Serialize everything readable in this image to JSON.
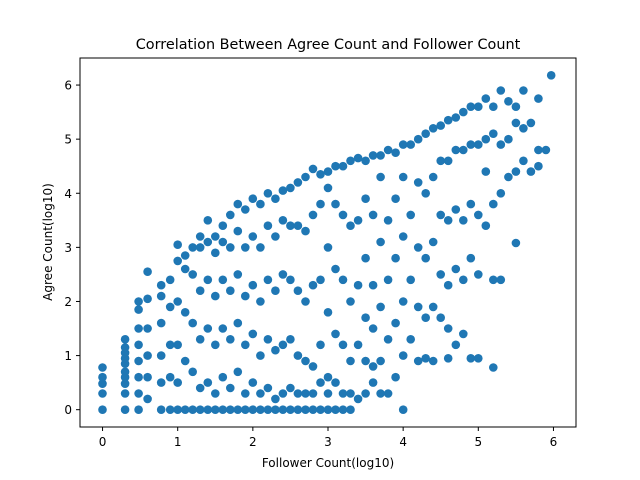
{
  "chart_data": {
    "type": "scatter",
    "title": "Correlation Between Agree Count and Follower Count",
    "xlabel": "Follower Count(log10)",
    "ylabel": "Agree Count(log10)",
    "xlim": [
      -0.3,
      6.3
    ],
    "ylim": [
      -0.32,
      6.5
    ],
    "xticks": [
      0,
      1,
      2,
      3,
      4,
      5,
      6
    ],
    "yticks": [
      0,
      1,
      2,
      3,
      4,
      5,
      6
    ],
    "grid": false,
    "legend": "none",
    "marker_color": "#1f77b4",
    "points": [
      [
        0,
        0
      ],
      [
        0,
        0.3
      ],
      [
        0,
        0.48
      ],
      [
        0,
        0.6
      ],
      [
        0,
        0.78
      ],
      [
        0.3,
        0
      ],
      [
        0.3,
        0.3
      ],
      [
        0.3,
        0.48
      ],
      [
        0.3,
        0.6
      ],
      [
        0.3,
        0.7
      ],
      [
        0.3,
        0.85
      ],
      [
        0.3,
        0.95
      ],
      [
        0.3,
        1.05
      ],
      [
        0.3,
        1.15
      ],
      [
        0.3,
        1.3
      ],
      [
        0.48,
        0
      ],
      [
        0.48,
        0.3
      ],
      [
        0.48,
        0.6
      ],
      [
        0.48,
        0.9
      ],
      [
        0.48,
        1.2
      ],
      [
        0.48,
        1.5
      ],
      [
        0.48,
        1.85
      ],
      [
        0.48,
        2.0
      ],
      [
        0.6,
        0.2
      ],
      [
        0.6,
        0.6
      ],
      [
        0.6,
        1.0
      ],
      [
        0.6,
        1.5
      ],
      [
        0.6,
        2.05
      ],
      [
        0.6,
        2.55
      ],
      [
        0.78,
        0
      ],
      [
        0.78,
        0.5
      ],
      [
        0.78,
        1.0
      ],
      [
        0.78,
        1.6
      ],
      [
        0.78,
        2.1
      ],
      [
        0.78,
        2.3
      ],
      [
        0.9,
        0
      ],
      [
        0.9,
        0.6
      ],
      [
        0.9,
        1.2
      ],
      [
        0.9,
        1.9
      ],
      [
        0.9,
        2.4
      ],
      [
        1.0,
        0
      ],
      [
        1.0,
        0.5
      ],
      [
        1.0,
        1.2
      ],
      [
        1.0,
        2.0
      ],
      [
        1.0,
        2.75
      ],
      [
        1.0,
        3.05
      ],
      [
        1.1,
        0
      ],
      [
        1.1,
        0.9
      ],
      [
        1.1,
        1.8
      ],
      [
        1.1,
        2.6
      ],
      [
        1.1,
        2.85
      ],
      [
        1.2,
        0
      ],
      [
        1.2,
        0.7
      ],
      [
        1.2,
        1.6
      ],
      [
        1.2,
        2.5
      ],
      [
        1.2,
        3.0
      ],
      [
        1.3,
        0
      ],
      [
        1.3,
        0.4
      ],
      [
        1.3,
        1.3
      ],
      [
        1.3,
        2.2
      ],
      [
        1.3,
        3.0
      ],
      [
        1.3,
        3.2
      ],
      [
        1.4,
        0
      ],
      [
        1.4,
        0.5
      ],
      [
        1.4,
        1.5
      ],
      [
        1.4,
        2.4
      ],
      [
        1.4,
        3.1
      ],
      [
        1.4,
        3.5
      ],
      [
        1.5,
        0
      ],
      [
        1.5,
        0.3
      ],
      [
        1.5,
        1.2
      ],
      [
        1.5,
        2.1
      ],
      [
        1.5,
        2.9
      ],
      [
        1.5,
        3.2
      ],
      [
        1.6,
        0
      ],
      [
        1.6,
        0.6
      ],
      [
        1.6,
        1.5
      ],
      [
        1.6,
        2.4
      ],
      [
        1.6,
        3.1
      ],
      [
        1.6,
        3.4
      ],
      [
        1.7,
        0
      ],
      [
        1.7,
        0.4
      ],
      [
        1.7,
        1.3
      ],
      [
        1.7,
        2.2
      ],
      [
        1.7,
        3.0
      ],
      [
        1.7,
        3.6
      ],
      [
        1.8,
        0
      ],
      [
        1.8,
        0.7
      ],
      [
        1.8,
        1.6
      ],
      [
        1.8,
        2.5
      ],
      [
        1.8,
        3.3
      ],
      [
        1.8,
        3.8
      ],
      [
        1.9,
        0
      ],
      [
        1.9,
        0.3
      ],
      [
        1.9,
        1.2
      ],
      [
        1.9,
        2.1
      ],
      [
        1.9,
        3.0
      ],
      [
        1.9,
        3.7
      ],
      [
        2.0,
        0
      ],
      [
        2.0,
        0.5
      ],
      [
        2.0,
        1.4
      ],
      [
        2.0,
        2.3
      ],
      [
        2.0,
        3.2
      ],
      [
        2.0,
        3.9
      ],
      [
        2.1,
        0
      ],
      [
        2.1,
        0.3
      ],
      [
        2.1,
        1.0
      ],
      [
        2.1,
        2.0
      ],
      [
        2.1,
        3.0
      ],
      [
        2.1,
        3.8
      ],
      [
        2.2,
        0
      ],
      [
        2.2,
        0.4
      ],
      [
        2.2,
        1.3
      ],
      [
        2.2,
        2.4
      ],
      [
        2.2,
        3.4
      ],
      [
        2.2,
        4.0
      ],
      [
        2.3,
        0
      ],
      [
        2.3,
        0.2
      ],
      [
        2.3,
        1.1
      ],
      [
        2.3,
        2.2
      ],
      [
        2.3,
        3.2
      ],
      [
        2.3,
        3.9
      ],
      [
        2.4,
        0
      ],
      [
        2.4,
        0.3
      ],
      [
        2.4,
        1.2
      ],
      [
        2.4,
        2.5
      ],
      [
        2.4,
        3.5
      ],
      [
        2.4,
        4.05
      ],
      [
        2.5,
        0
      ],
      [
        2.5,
        0.4
      ],
      [
        2.5,
        1.3
      ],
      [
        2.5,
        2.4
      ],
      [
        2.5,
        3.4
      ],
      [
        2.5,
        4.1
      ],
      [
        2.6,
        0
      ],
      [
        2.6,
        0.3
      ],
      [
        2.6,
        1.0
      ],
      [
        2.6,
        2.2
      ],
      [
        2.6,
        3.4
      ],
      [
        2.6,
        4.2
      ],
      [
        2.7,
        0
      ],
      [
        2.7,
        0.3
      ],
      [
        2.7,
        0.9
      ],
      [
        2.7,
        2.0
      ],
      [
        2.7,
        3.3
      ],
      [
        2.7,
        4.3
      ],
      [
        2.8,
        0
      ],
      [
        2.8,
        0.3
      ],
      [
        2.8,
        0.8
      ],
      [
        2.8,
        2.3
      ],
      [
        2.8,
        3.6
      ],
      [
        2.8,
        4.45
      ],
      [
        2.9,
        0
      ],
      [
        2.9,
        0.5
      ],
      [
        2.9,
        1.2
      ],
      [
        2.9,
        2.4
      ],
      [
        2.9,
        3.8
      ],
      [
        2.9,
        4.35
      ],
      [
        3.0,
        0
      ],
      [
        3.0,
        0.3
      ],
      [
        3.0,
        0.6
      ],
      [
        3.0,
        1.8
      ],
      [
        3.0,
        3.0
      ],
      [
        3.0,
        4.1
      ],
      [
        3.0,
        4.4
      ],
      [
        3.1,
        0
      ],
      [
        3.1,
        0.5
      ],
      [
        3.1,
        1.4
      ],
      [
        3.1,
        2.6
      ],
      [
        3.1,
        3.8
      ],
      [
        3.1,
        4.5
      ],
      [
        3.2,
        0
      ],
      [
        3.2,
        0.3
      ],
      [
        3.2,
        1.2
      ],
      [
        3.2,
        2.4
      ],
      [
        3.2,
        3.6
      ],
      [
        3.2,
        4.5
      ],
      [
        3.3,
        0
      ],
      [
        3.3,
        0.3
      ],
      [
        3.3,
        0.9
      ],
      [
        3.3,
        2.0
      ],
      [
        3.3,
        3.4
      ],
      [
        3.3,
        4.6
      ],
      [
        3.4,
        0.2
      ],
      [
        3.4,
        1.2
      ],
      [
        3.4,
        2.3
      ],
      [
        3.4,
        3.5
      ],
      [
        3.4,
        4.65
      ],
      [
        3.5,
        0.3
      ],
      [
        3.5,
        0.9
      ],
      [
        3.5,
        1.7
      ],
      [
        3.5,
        2.8
      ],
      [
        3.5,
        3.9
      ],
      [
        3.5,
        4.6
      ],
      [
        3.6,
        0.5
      ],
      [
        3.6,
        0.8
      ],
      [
        3.6,
        1.5
      ],
      [
        3.6,
        2.3
      ],
      [
        3.6,
        3.6
      ],
      [
        3.6,
        4.7
      ],
      [
        3.7,
        0.3
      ],
      [
        3.7,
        0.9
      ],
      [
        3.7,
        1.9
      ],
      [
        3.7,
        3.1
      ],
      [
        3.7,
        4.3
      ],
      [
        3.7,
        4.7
      ],
      [
        3.8,
        0.3
      ],
      [
        3.8,
        1.3
      ],
      [
        3.8,
        2.4
      ],
      [
        3.8,
        3.5
      ],
      [
        3.8,
        4.8
      ],
      [
        3.9,
        0.6
      ],
      [
        3.9,
        1.6
      ],
      [
        3.9,
        2.8
      ],
      [
        3.9,
        3.9
      ],
      [
        3.9,
        4.75
      ],
      [
        4.0,
        0
      ],
      [
        4.0,
        1.0
      ],
      [
        4.0,
        2.0
      ],
      [
        4.0,
        3.2
      ],
      [
        4.0,
        4.3
      ],
      [
        4.0,
        4.9
      ],
      [
        4.1,
        1.3
      ],
      [
        4.1,
        2.4
      ],
      [
        4.1,
        3.6
      ],
      [
        4.1,
        4.9
      ],
      [
        4.2,
        0.9
      ],
      [
        4.2,
        1.9
      ],
      [
        4.2,
        3.0
      ],
      [
        4.2,
        4.2
      ],
      [
        4.2,
        5.0
      ],
      [
        4.3,
        0.95
      ],
      [
        4.3,
        1.7
      ],
      [
        4.3,
        2.8
      ],
      [
        4.3,
        4.0
      ],
      [
        4.3,
        5.1
      ],
      [
        4.4,
        0.9
      ],
      [
        4.4,
        1.9
      ],
      [
        4.4,
        3.1
      ],
      [
        4.4,
        4.3
      ],
      [
        4.4,
        5.2
      ],
      [
        4.5,
        1.7
      ],
      [
        4.5,
        2.5
      ],
      [
        4.5,
        3.6
      ],
      [
        4.5,
        4.6
      ],
      [
        4.5,
        5.25
      ],
      [
        4.6,
        0.95
      ],
      [
        4.6,
        1.5
      ],
      [
        4.6,
        2.3
      ],
      [
        4.6,
        3.5
      ],
      [
        4.6,
        4.6
      ],
      [
        4.6,
        5.35
      ],
      [
        4.7,
        1.2
      ],
      [
        4.7,
        2.6
      ],
      [
        4.7,
        3.7
      ],
      [
        4.7,
        4.8
      ],
      [
        4.7,
        5.4
      ],
      [
        4.8,
        1.4
      ],
      [
        4.8,
        2.4
      ],
      [
        4.8,
        3.5
      ],
      [
        4.8,
        4.8
      ],
      [
        4.8,
        5.5
      ],
      [
        4.9,
        0.95
      ],
      [
        4.9,
        2.8
      ],
      [
        4.9,
        3.8
      ],
      [
        4.9,
        4.9
      ],
      [
        4.9,
        5.6
      ],
      [
        5.0,
        0.95
      ],
      [
        5.0,
        2.5
      ],
      [
        5.0,
        3.6
      ],
      [
        5.0,
        4.9
      ],
      [
        5.0,
        5.6
      ],
      [
        5.1,
        3.4
      ],
      [
        5.1,
        4.4
      ],
      [
        5.1,
        5.0
      ],
      [
        5.1,
        5.75
      ],
      [
        5.2,
        0.78
      ],
      [
        5.2,
        2.4
      ],
      [
        5.2,
        3.8
      ],
      [
        5.2,
        5.1
      ],
      [
        5.2,
        5.6
      ],
      [
        5.3,
        2.4
      ],
      [
        5.3,
        4.0
      ],
      [
        5.3,
        4.9
      ],
      [
        5.3,
        5.9
      ],
      [
        5.4,
        4.3
      ],
      [
        5.4,
        5.0
      ],
      [
        5.4,
        5.7
      ],
      [
        5.5,
        3.08
      ],
      [
        5.5,
        4.4
      ],
      [
        5.5,
        5.3
      ],
      [
        5.5,
        5.6
      ],
      [
        5.6,
        4.6
      ],
      [
        5.6,
        5.2
      ],
      [
        5.6,
        5.9
      ],
      [
        5.7,
        4.4
      ],
      [
        5.7,
        5.3
      ],
      [
        5.8,
        4.5
      ],
      [
        5.8,
        4.8
      ],
      [
        5.8,
        5.75
      ],
      [
        5.9,
        4.8
      ],
      [
        5.97,
        6.18
      ]
    ]
  }
}
